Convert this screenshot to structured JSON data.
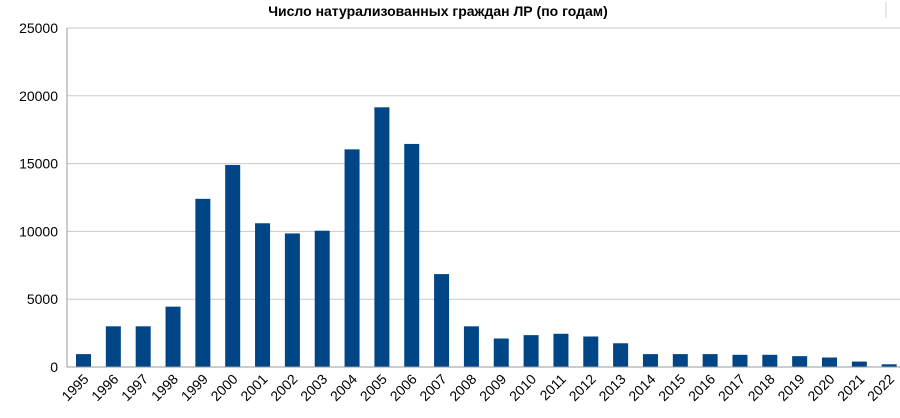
{
  "chart_data": {
    "type": "bar",
    "title": "Число натурализованных граждан ЛР (по годам)",
    "xlabel": "",
    "ylabel": "",
    "ylim": [
      0,
      25000
    ],
    "yticks": [
      0,
      5000,
      10000,
      15000,
      20000,
      25000
    ],
    "ytick_labels": [
      "0",
      "5000",
      "10000",
      "15000",
      "20000",
      "25000"
    ],
    "grid": true,
    "legend": "none",
    "bar_color": "#004586",
    "categories": [
      "1995",
      "1996",
      "1997",
      "1998",
      "1999",
      "2000",
      "2001",
      "2002",
      "2003",
      "2004",
      "2005",
      "2006",
      "2007",
      "2008",
      "2009",
      "2010",
      "2011",
      "2012",
      "2013",
      "2014",
      "2015",
      "2016",
      "2017",
      "2018",
      "2019",
      "2020",
      "2021",
      "2022"
    ],
    "values": [
      950,
      3000,
      3000,
      4450,
      12400,
      14900,
      10600,
      9850,
      10050,
      16050,
      19150,
      16450,
      6850,
      3000,
      2100,
      2350,
      2450,
      2250,
      1750,
      950,
      950,
      950,
      900,
      900,
      800,
      700,
      400,
      200
    ]
  }
}
